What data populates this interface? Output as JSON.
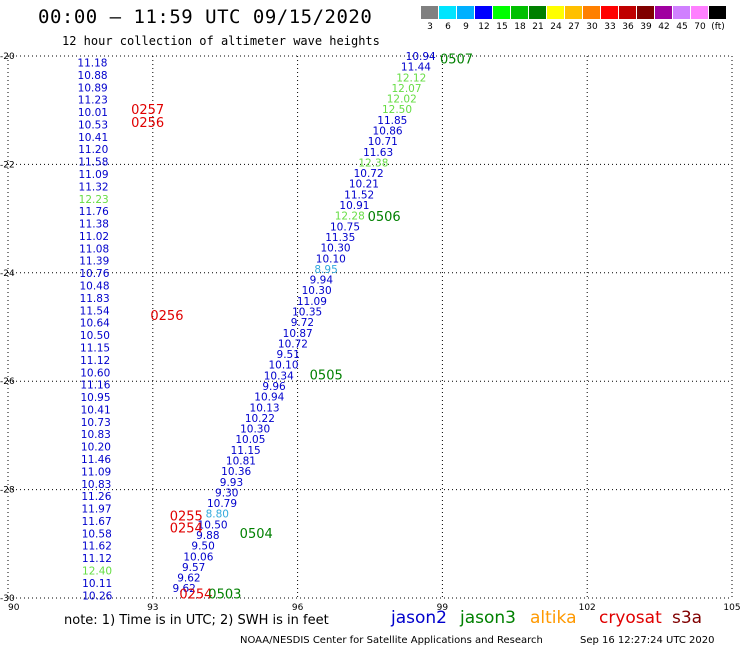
{
  "title": "00:00 – 11:59 UTC 09/15/2020",
  "subtitle": "12 hour collection of altimeter wave heights",
  "colorbar": {
    "labels": [
      "3",
      "6",
      "9",
      "12",
      "15",
      "18",
      "21",
      "24",
      "27",
      "30",
      "33",
      "36",
      "39",
      "42",
      "45",
      "70",
      "(ft)"
    ],
    "colors": [
      "#808080",
      "#00e5ff",
      "#00b0ff",
      "#0000ff",
      "#00ff00",
      "#00c000",
      "#008000",
      "#ffff00",
      "#ffc000",
      "#ff8000",
      "#ff0000",
      "#c00000",
      "#800000",
      "#a000a0",
      "#d080ff",
      "#ff80ff",
      "#000000"
    ]
  },
  "note": "note: 1) Time is in UTC; 2) SWH is in feet",
  "legend": [
    {
      "name": "jason2",
      "color": "#0000cc"
    },
    {
      "name": "jason3",
      "color": "#008000"
    },
    {
      "name": "altika",
      "color": "#ff9900"
    },
    {
      "name": "cryosat",
      "color": "#e00000"
    },
    {
      "name": "s3a",
      "color": "#800000"
    }
  ],
  "credit": "NOAA/NESDIS Center for Satellite Applications and Research",
  "timestamp": "Sep 16 12:27:24 UTC 2020",
  "chart_data": {
    "type": "scatter",
    "xlim": [
      90,
      105
    ],
    "ylim": [
      -30,
      -20
    ],
    "x_ticks": [
      "90",
      "93",
      "96",
      "99",
      "102",
      "105"
    ],
    "y_ticks": [
      "-20",
      "-22",
      "-24",
      "-26",
      "-28",
      "-30"
    ],
    "grid": true,
    "palette": {
      "b": "#0000cc",
      "l": "#66dd44",
      "c": "#33aadd"
    },
    "tracks": [
      {
        "x0": 91.75,
        "y0": -20.12,
        "x1": 91.85,
        "y1": -29.95,
        "values": [
          [
            "11.18",
            "b"
          ],
          [
            "10.88",
            "b"
          ],
          [
            "10.89",
            "b"
          ],
          [
            "11.23",
            "b"
          ],
          [
            "10.01",
            "b"
          ],
          [
            "10.53",
            "b"
          ],
          [
            "10.41",
            "b"
          ],
          [
            "11.20",
            "b"
          ],
          [
            "11.58",
            "b"
          ],
          [
            "11.09",
            "b"
          ],
          [
            "11.32",
            "b"
          ],
          [
            "12.23",
            "l"
          ],
          [
            "11.76",
            "b"
          ],
          [
            "11.38",
            "b"
          ],
          [
            "11.02",
            "b"
          ],
          [
            "11.08",
            "b"
          ],
          [
            "11.39",
            "b"
          ],
          [
            "10.76",
            "b"
          ],
          [
            "10.48",
            "b"
          ],
          [
            "11.83",
            "b"
          ],
          [
            "11.54",
            "b"
          ],
          [
            "10.64",
            "b"
          ],
          [
            "10.50",
            "b"
          ],
          [
            "11.15",
            "b"
          ],
          [
            "11.12",
            "b"
          ],
          [
            "10.60",
            "b"
          ],
          [
            "11.16",
            "b"
          ],
          [
            "10.95",
            "b"
          ],
          [
            "10.41",
            "b"
          ],
          [
            "10.73",
            "b"
          ],
          [
            "10.83",
            "b"
          ],
          [
            "10.20",
            "b"
          ],
          [
            "11.46",
            "b"
          ],
          [
            "11.09",
            "b"
          ],
          [
            "10.83",
            "b"
          ],
          [
            "11.26",
            "b"
          ],
          [
            "11.97",
            "b"
          ],
          [
            "11.67",
            "b"
          ],
          [
            "10.58",
            "b"
          ],
          [
            "11.62",
            "b"
          ],
          [
            "11.12",
            "b"
          ],
          [
            "12.40",
            "l"
          ],
          [
            "10.11",
            "b"
          ],
          [
            "10.26",
            "b"
          ]
        ]
      },
      {
        "x0": 98.55,
        "y0": -20.0,
        "x1": 93.65,
        "y1": -29.82,
        "values": [
          [
            "10.94",
            "b"
          ],
          [
            "11.44",
            "b"
          ],
          [
            "12.12",
            "l"
          ],
          [
            "12.07",
            "l"
          ],
          [
            "12.02",
            "l"
          ],
          [
            "12.50",
            "l"
          ],
          [
            "11.85",
            "b"
          ],
          [
            "10.86",
            "b"
          ],
          [
            "10.71",
            "b"
          ],
          [
            "11.63",
            "b"
          ],
          [
            "12.38",
            "l"
          ],
          [
            "10.72",
            "b"
          ],
          [
            "10.21",
            "b"
          ],
          [
            "11.52",
            "b"
          ],
          [
            "10.91",
            "b"
          ],
          [
            "12.28",
            "l"
          ],
          [
            "10.75",
            "b"
          ],
          [
            "11.35",
            "b"
          ],
          [
            "10.30",
            "b"
          ],
          [
            "10.10",
            "b"
          ],
          [
            "8.95",
            "c"
          ],
          [
            "9.94",
            "b"
          ],
          [
            "10.30",
            "b"
          ],
          [
            "11.09",
            "b"
          ],
          [
            "10.35",
            "b"
          ],
          [
            "9.72",
            "b"
          ],
          [
            "10.87",
            "b"
          ],
          [
            "10.72",
            "b"
          ],
          [
            "9.51",
            "b"
          ],
          [
            "10.10",
            "b"
          ],
          [
            "10.34",
            "b"
          ],
          [
            "9.96",
            "b"
          ],
          [
            "10.94",
            "b"
          ],
          [
            "10.13",
            "b"
          ],
          [
            "10.22",
            "b"
          ],
          [
            "10.30",
            "b"
          ],
          [
            "10.05",
            "b"
          ],
          [
            "11.15",
            "b"
          ],
          [
            "10.81",
            "b"
          ],
          [
            "10.36",
            "b"
          ],
          [
            "9.93",
            "b"
          ],
          [
            "9.30",
            "b"
          ],
          [
            "10.79",
            "b"
          ],
          [
            "8.80",
            "c"
          ],
          [
            "10.50",
            "b"
          ],
          [
            "9.88",
            "b"
          ],
          [
            "9.50",
            "b"
          ],
          [
            "10.06",
            "b"
          ],
          [
            "9.57",
            "b"
          ],
          [
            "9.62",
            "b"
          ],
          [
            "9.62",
            "b"
          ]
        ]
      }
    ],
    "time_labels": [
      {
        "text": "0507",
        "color": "#008000",
        "x": 98.95,
        "y": -20.05
      },
      {
        "text": "0257",
        "color": "#e00000",
        "x": 92.55,
        "y": -20.98
      },
      {
        "text": "0256",
        "color": "#e00000",
        "x": 92.55,
        "y": -21.22
      },
      {
        "text": "0506",
        "color": "#008000",
        "x": 97.45,
        "y": -22.95
      },
      {
        "text": "0256",
        "color": "#e00000",
        "x": 92.95,
        "y": -24.78
      },
      {
        "text": "0505",
        "color": "#008000",
        "x": 96.25,
        "y": -25.88
      },
      {
        "text": "0255",
        "color": "#e00000",
        "x": 93.35,
        "y": -28.48
      },
      {
        "text": "0254",
        "color": "#e00000",
        "x": 93.35,
        "y": -28.7
      },
      {
        "text": "0504",
        "color": "#008000",
        "x": 94.8,
        "y": -28.8
      },
      {
        "text": "0254",
        "color": "#e00000",
        "x": 93.55,
        "y": -29.92
      },
      {
        "text": "0503",
        "color": "#008000",
        "x": 94.15,
        "y": -29.92
      }
    ]
  }
}
